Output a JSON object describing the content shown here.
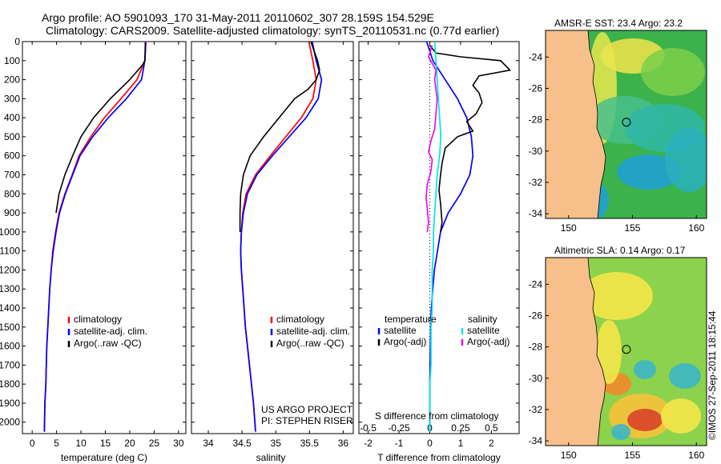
{
  "header": {
    "line1": "Argo profile: AO 5901093_170 31-May-2011 20110602_307 28.159S 154.529E",
    "line2": "Climatology: CARS2009. Satellite-adjusted climatology: synTS_20110531.nc (0.77d earlier)"
  },
  "colors": {
    "climatology": "#ff0000",
    "satellite": "#0000ff",
    "argo": "#000000",
    "salinity_satellite": "#00e5ee",
    "salinity_argo": "#ee00ee",
    "land": "#f7c08a"
  },
  "chart_data": [
    {
      "type": "line",
      "xlabel": "temperature (deg C)",
      "ylabel": "",
      "xlim": [
        -2,
        31.5
      ],
      "ylim": [
        2060,
        0
      ],
      "xticks": [
        0,
        5,
        10,
        15,
        20,
        25,
        30
      ],
      "yticks": [
        0,
        100,
        200,
        300,
        400,
        500,
        600,
        700,
        800,
        900,
        1000,
        1100,
        1200,
        1300,
        1400,
        1500,
        1600,
        1700,
        1800,
        1900,
        2000
      ],
      "legend": [
        "climatology",
        "satellite-adj. clim.",
        "Argo(..raw -QC)"
      ],
      "legend_position": "bottom-center",
      "series": [
        {
          "name": "climatology",
          "x": [
            23.3,
            23.1,
            21.5,
            18.2,
            14.8,
            12.0,
            9.6,
            8.2,
            6.7,
            5.5,
            4.8,
            4.2,
            3.9,
            3.6,
            3.4,
            3.2,
            3.0,
            2.9,
            2.8,
            2.6,
            2.5
          ],
          "y": [
            0,
            100,
            200,
            300,
            400,
            500,
            600,
            700,
            800,
            900,
            1000,
            1100,
            1200,
            1300,
            1400,
            1500,
            1600,
            1700,
            1800,
            1900,
            2050
          ]
        },
        {
          "name": "satellite-adj. clim.",
          "x": [
            23.2,
            23.1,
            22.4,
            19.3,
            15.6,
            12.4,
            9.8,
            8.3,
            6.8,
            5.6,
            4.9,
            4.3,
            3.9,
            3.6,
            3.4,
            3.2,
            3.0,
            2.9,
            2.8,
            2.6,
            2.5
          ],
          "y": [
            0,
            100,
            200,
            300,
            400,
            500,
            600,
            700,
            800,
            900,
            1000,
            1100,
            1200,
            1300,
            1400,
            1500,
            1600,
            1700,
            1800,
            1900,
            2050
          ]
        },
        {
          "name": "Argo(..raw -QC)",
          "x": [
            23.2,
            23.2,
            23.1,
            22.7,
            20.0,
            16.0,
            12.6,
            10.0,
            8.3,
            6.7,
            5.5,
            4.9
          ],
          "y": [
            5,
            50,
            100,
            120,
            200,
            300,
            400,
            500,
            600,
            700,
            800,
            900
          ]
        }
      ]
    },
    {
      "type": "line",
      "xlabel": "salinity",
      "ylabel": "",
      "xlim": [
        33.75,
        36.15
      ],
      "ylim": [
        2060,
        0
      ],
      "xticks": [
        34,
        34.5,
        35,
        35.5,
        36
      ],
      "legend": [
        "climatology",
        "satellite-adj. clim.",
        "Argo(..raw -QC)"
      ],
      "legend_position": "bottom-center",
      "annotation": [
        "US ARGO PROJECT",
        "PI: STEPHEN RISER"
      ],
      "series": [
        {
          "name": "climatology",
          "x": [
            35.49,
            35.55,
            35.6,
            35.55,
            35.38,
            35.15,
            34.92,
            34.7,
            34.56,
            34.51,
            34.49,
            34.48,
            34.49,
            34.51,
            34.53,
            34.55,
            34.58,
            34.61,
            34.64,
            34.67,
            34.7
          ],
          "y": [
            0,
            100,
            200,
            300,
            400,
            500,
            600,
            700,
            800,
            900,
            1000,
            1100,
            1200,
            1300,
            1400,
            1500,
            1600,
            1700,
            1800,
            1900,
            2050
          ]
        },
        {
          "name": "satellite-adj. clim.",
          "x": [
            35.54,
            35.6,
            35.68,
            35.63,
            35.45,
            35.2,
            34.95,
            34.72,
            34.58,
            34.52,
            34.49,
            34.48,
            34.49,
            34.51,
            34.53,
            34.55,
            34.58,
            34.61,
            34.64,
            34.67,
            34.7
          ],
          "y": [
            0,
            100,
            200,
            300,
            400,
            500,
            600,
            700,
            800,
            900,
            1000,
            1100,
            1200,
            1300,
            1400,
            1500,
            1600,
            1700,
            1800,
            1900,
            2050
          ]
        },
        {
          "name": "Argo(..raw -QC)",
          "x": [
            35.52,
            35.58,
            35.62,
            35.65,
            35.6,
            35.48,
            35.28,
            35.05,
            34.82,
            34.62,
            34.52,
            34.48,
            34.47,
            34.47
          ],
          "y": [
            0,
            60,
            100,
            150,
            200,
            250,
            300,
            400,
            500,
            600,
            700,
            800,
            900,
            1000
          ]
        }
      ]
    },
    {
      "type": "line",
      "xlabel": "T difference from climatology",
      "xlabel_top": "S difference from climatology",
      "xlim": [
        -2.3,
        2.9
      ],
      "x2lim": [
        -0.575,
        0.725
      ],
      "ylim": [
        2060,
        0
      ],
      "xticks": [
        -2,
        -1,
        0,
        1,
        2
      ],
      "x2ticks": [
        -0.5,
        -0.25,
        0,
        0.25,
        0.5
      ],
      "legend": [
        "temperature",
        "satellite",
        "Argo(-adj)",
        "salinity",
        "satellite",
        "Argo(-adj)"
      ],
      "legend_position": "bottom",
      "series": [
        {
          "name": "satellite",
          "group": "temperature",
          "x": [
            -0.1,
            0.1,
            0.5,
            0.9,
            1.2,
            1.35,
            1.4,
            1.3,
            1.0,
            0.6,
            0.35,
            0.25,
            0.15,
            0.1,
            0.05,
            0.03,
            0.02,
            0.01,
            0,
            0,
            0
          ],
          "y": [
            0,
            100,
            200,
            300,
            400,
            500,
            600,
            700,
            800,
            900,
            1000,
            1100,
            1200,
            1300,
            1400,
            1500,
            1600,
            1700,
            1800,
            1900,
            2050
          ]
        },
        {
          "name": "Argo(-adj)",
          "group": "temperature",
          "x": [
            0,
            0.2,
            1.0,
            2.3,
            2.6,
            1.6,
            1.4,
            1.6,
            1.7,
            1.5,
            1.2,
            1.4,
            0.9,
            0.5,
            0.4,
            0.35,
            0.3,
            0.35,
            0.4,
            0.35
          ],
          "y": [
            20,
            60,
            80,
            100,
            150,
            180,
            230,
            270,
            320,
            380,
            420,
            470,
            500,
            560,
            640,
            700,
            780,
            850,
            950,
            1000
          ]
        },
        {
          "name": "satellite",
          "group": "salinity",
          "x": [
            0.04,
            0.05,
            0.06,
            0.07,
            0.08,
            0.09,
            0.08,
            0.06,
            0.05,
            0.04,
            0.03,
            0.03,
            0.02,
            0.02,
            0.02,
            0.01,
            0.01,
            0.01,
            0,
            0,
            0
          ],
          "y": [
            0,
            100,
            200,
            300,
            400,
            500,
            600,
            700,
            800,
            900,
            1000,
            1100,
            1200,
            1300,
            1400,
            1500,
            1600,
            1700,
            1800,
            1900,
            2050
          ]
        },
        {
          "name": "Argo(-adj)",
          "group": "salinity",
          "x": [
            0.02,
            -0.01,
            0.05,
            0.04,
            0.06,
            0.05,
            0.04,
            0.01,
            -0.01,
            0.02,
            0.01,
            -0.02,
            -0.03,
            -0.02,
            -0.01,
            -0.02
          ],
          "y": [
            20,
            80,
            150,
            200,
            300,
            380,
            460,
            520,
            580,
            620,
            680,
            750,
            820,
            880,
            950,
            1000
          ]
        }
      ]
    },
    {
      "type": "heatmap",
      "title": "AMSR-E SST: 23.4 Argo: 23.2",
      "xlim": [
        148.2,
        160.8
      ],
      "ylim": [
        -34.3,
        -22.3
      ],
      "xticks": [
        150,
        155,
        160
      ],
      "yticks": [
        -24,
        -26,
        -28,
        -30,
        -32,
        -34
      ],
      "marker": {
        "lon": 154.529,
        "lat": -28.159
      }
    },
    {
      "type": "heatmap",
      "title": "Altimetric SLA: 0.14 Argo: 0.17",
      "xlim": [
        148.2,
        160.8
      ],
      "ylim": [
        -34.3,
        -22.3
      ],
      "xticks": [
        150,
        155,
        160
      ],
      "yticks": [
        -24,
        -26,
        -28,
        -30,
        -32,
        -34
      ],
      "marker": {
        "lon": 154.529,
        "lat": -28.159
      }
    }
  ],
  "footer": {
    "stamp": "©IMOS 27-Sep-2011 18:15:44"
  }
}
